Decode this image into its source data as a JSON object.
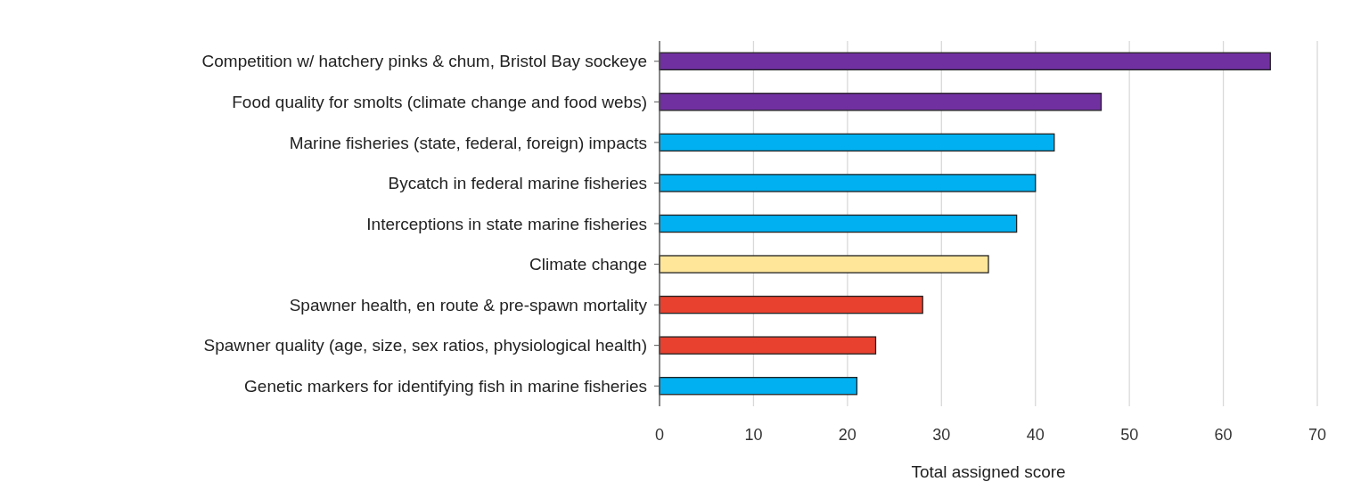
{
  "chart_data": {
    "type": "bar",
    "orientation": "horizontal",
    "xlabel": "Total assigned score",
    "categories": [
      "Competition w/ hatchery pinks & chum, Bristol Bay sockeye",
      "Food quality for smolts (climate change and food webs)",
      "Marine fisheries (state, federal, foreign) impacts",
      "Bycatch in federal marine fisheries",
      "Interceptions in state marine fisheries",
      "Climate change",
      "Spawner health, en route & pre-spawn mortality",
      "Spawner quality (age, size, sex ratios, physiological health)",
      "Genetic markers for identifying fish in marine fisheries"
    ],
    "values": [
      65,
      47,
      42,
      40,
      38,
      35,
      28,
      23,
      21
    ],
    "colors": [
      "#7030a0",
      "#7030a0",
      "#00b0f0",
      "#00b0f0",
      "#00b0f0",
      "#ffe699",
      "#e8412f",
      "#e8412f",
      "#00b0f0"
    ],
    "xlim": [
      0,
      70
    ],
    "xticks": [
      0,
      10,
      20,
      30,
      40,
      50,
      60,
      70
    ],
    "grid": "x"
  }
}
